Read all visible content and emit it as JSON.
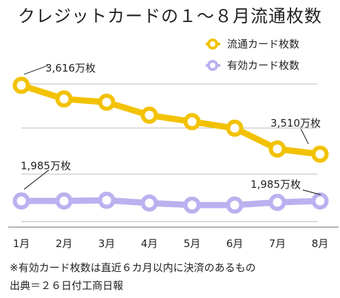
{
  "title": "クレジットカードの１～８月流通枚数",
  "footnote": "※有効カード枚数は直近６カ月以内に決済のあるもの",
  "source": "出典＝２６日付工商日報",
  "colors": {
    "series1": "#f2c200",
    "series2": "#bcb0f0",
    "grid": "#b8b8b8",
    "axis": "#9a9a9a",
    "text": "#222222"
  },
  "chart_data": {
    "type": "line",
    "categories": [
      "1月",
      "2月",
      "3月",
      "4月",
      "5月",
      "6月",
      "7月",
      "8月"
    ],
    "series": [
      {
        "name": "流通カード枚数",
        "values": [
          3616,
          3595,
          3590,
          3570,
          3560,
          3550,
          3518,
          3510
        ]
      },
      {
        "name": "有効カード枚数",
        "values": [
          1985,
          1985,
          1986,
          1982,
          1979,
          1979,
          1983,
          1985
        ]
      }
    ],
    "annotations": [
      {
        "text": "3,616万枚",
        "series": 0,
        "index": 0
      },
      {
        "text": "3,510万枚",
        "series": 0,
        "index": 7
      },
      {
        "text": "1,985万枚",
        "series": 1,
        "index": 0
      },
      {
        "text": "1,985万枚",
        "series": 1,
        "index": 7
      }
    ],
    "legend_position": "top-right",
    "grid": true
  }
}
